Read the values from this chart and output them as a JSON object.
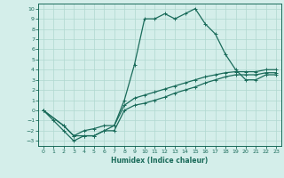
{
  "title": "",
  "xlabel": "Humidex (Indice chaleur)",
  "ylabel": "",
  "background_color": "#d4eeea",
  "grid_color": "#b0d8d0",
  "line_color": "#1a6b5a",
  "xlim": [
    -0.5,
    23.5
  ],
  "ylim": [
    -3.5,
    10.5
  ],
  "xticks": [
    0,
    1,
    2,
    3,
    4,
    5,
    6,
    7,
    8,
    9,
    10,
    11,
    12,
    13,
    14,
    15,
    16,
    17,
    18,
    19,
    20,
    21,
    22,
    23
  ],
  "yticks": [
    -3,
    -2,
    -1,
    0,
    1,
    2,
    3,
    4,
    5,
    6,
    7,
    8,
    9,
    10
  ],
  "series1_x": [
    0,
    1,
    2,
    3,
    4,
    5,
    6,
    7,
    8,
    9,
    10,
    11,
    12,
    13,
    14,
    15,
    16,
    17,
    18,
    19,
    20,
    21,
    22,
    23
  ],
  "series1_y": [
    0,
    -1,
    -2,
    -3,
    -2.5,
    -2.5,
    -2,
    -1.5,
    1,
    4.5,
    9,
    9,
    9.5,
    9,
    9.5,
    10,
    8.5,
    7.5,
    5.5,
    4,
    3,
    3,
    3.5,
    3.5
  ],
  "series2_x": [
    0,
    2,
    3,
    4,
    5,
    6,
    7,
    8,
    9,
    10,
    11,
    12,
    13,
    14,
    15,
    16,
    17,
    18,
    19,
    20,
    21,
    22,
    23
  ],
  "series2_y": [
    0,
    -1.5,
    -2.5,
    -2.5,
    -2.5,
    -2,
    -2,
    0,
    0.5,
    0.7,
    1.0,
    1.3,
    1.7,
    2.0,
    2.3,
    2.7,
    3.0,
    3.3,
    3.5,
    3.5,
    3.5,
    3.7,
    3.7
  ],
  "series3_x": [
    0,
    2,
    3,
    4,
    5,
    6,
    7,
    8,
    9,
    10,
    11,
    12,
    13,
    14,
    15,
    16,
    17,
    18,
    19,
    20,
    21,
    22,
    23
  ],
  "series3_y": [
    0,
    -1.5,
    -2.5,
    -2.0,
    -1.8,
    -1.5,
    -1.5,
    0.5,
    1.2,
    1.5,
    1.8,
    2.1,
    2.4,
    2.7,
    3.0,
    3.3,
    3.5,
    3.7,
    3.8,
    3.8,
    3.8,
    4.0,
    4.0
  ],
  "marker": "+"
}
